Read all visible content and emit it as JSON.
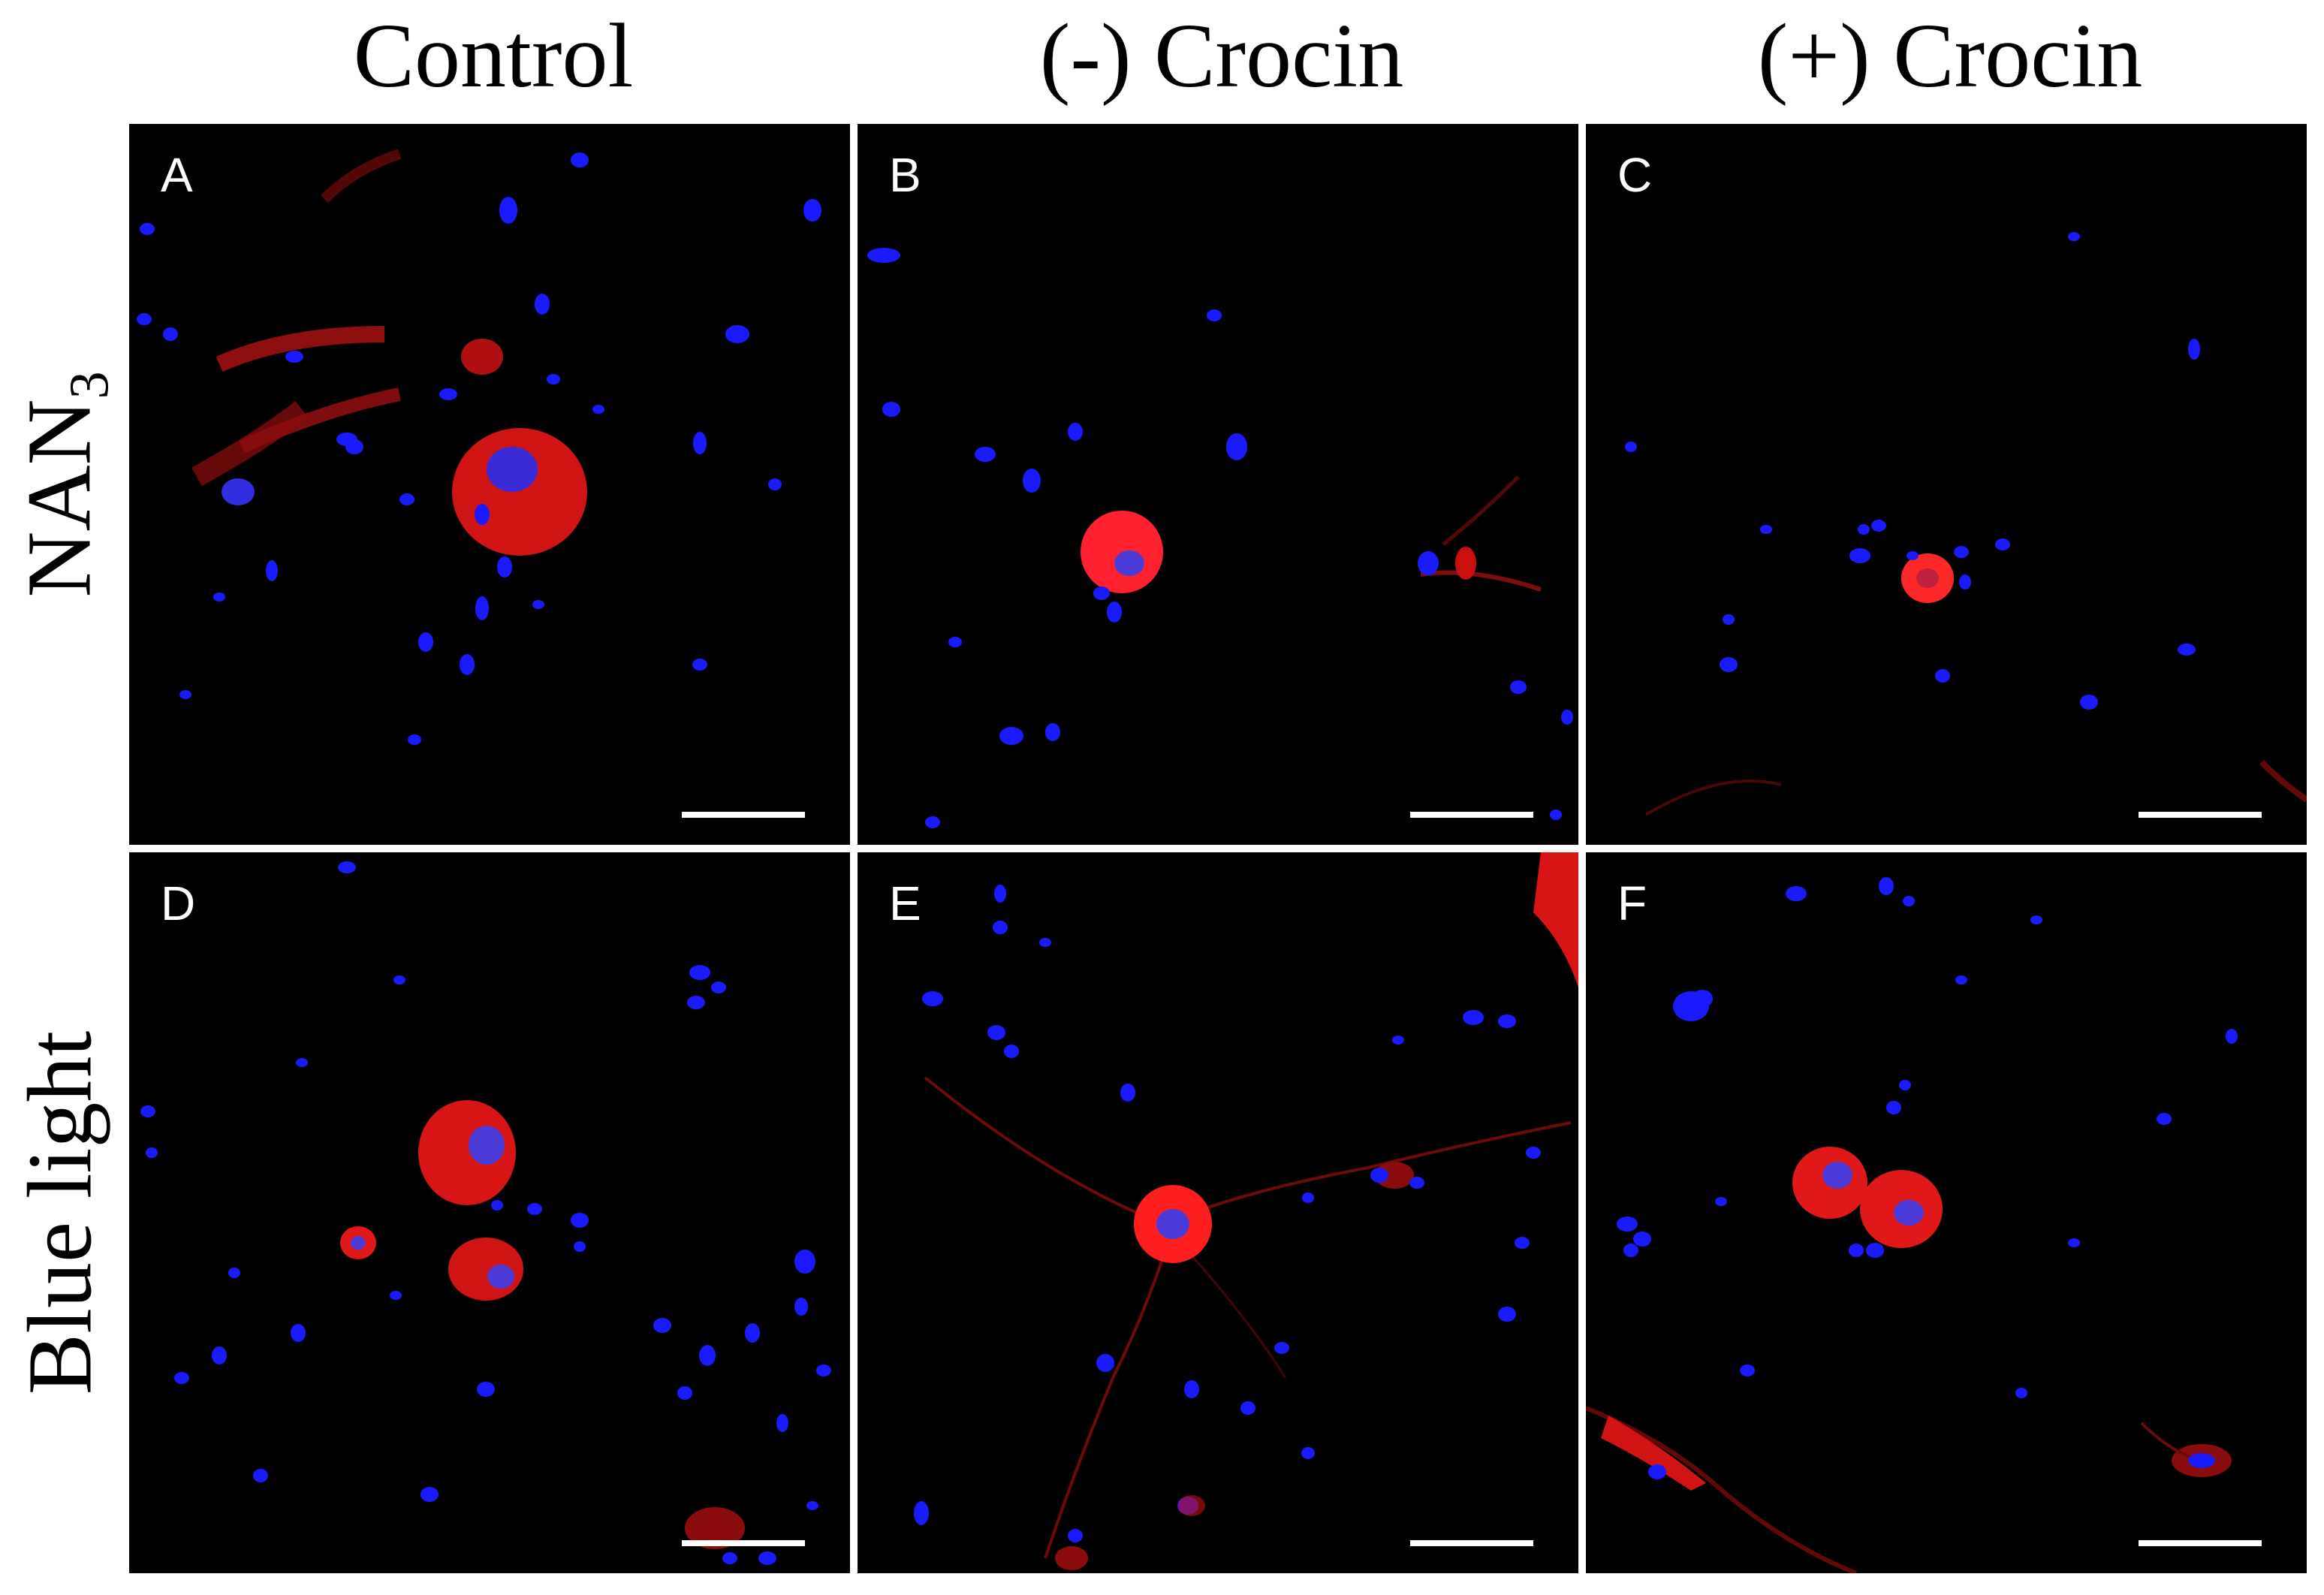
{
  "columns": [
    {
      "label": "Control"
    },
    {
      "label": "(-) Crocin"
    },
    {
      "label": "(+) Crocin"
    }
  ],
  "rows": [
    {
      "label_main": "NAN",
      "label_sub": "3"
    },
    {
      "label_main": "Blue light",
      "label_sub": ""
    }
  ],
  "panels": [
    {
      "letter": "A"
    },
    {
      "letter": "B"
    },
    {
      "letter": "C"
    },
    {
      "letter": "D"
    },
    {
      "letter": "E"
    },
    {
      "letter": "F"
    }
  ],
  "colors": {
    "nucleus": "#1a1aff",
    "cell": "#e81010",
    "background": "#000000",
    "scale_bar": "#ffffff"
  }
}
